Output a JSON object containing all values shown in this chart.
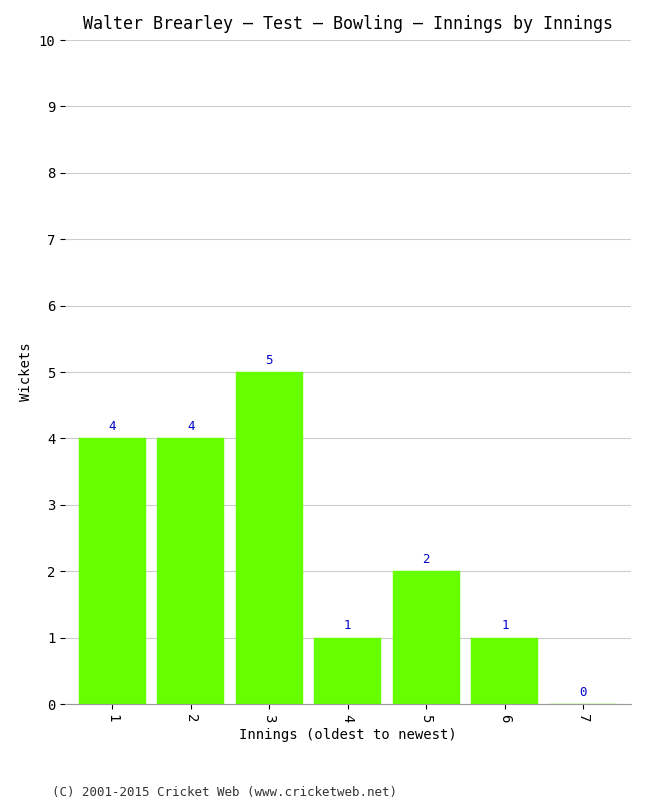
{
  "title": "Walter Brearley – Test – Bowling – Innings by Innings",
  "xlabel": "Innings (oldest to newest)",
  "ylabel": "Wickets",
  "categories": [
    1,
    2,
    3,
    4,
    5,
    6,
    7
  ],
  "values": [
    4,
    4,
    5,
    1,
    2,
    1,
    0
  ],
  "bar_color": "#66ff00",
  "bar_edge_color": "#66ff00",
  "ylim": [
    0,
    10
  ],
  "yticks": [
    0,
    1,
    2,
    3,
    4,
    5,
    6,
    7,
    8,
    9,
    10
  ],
  "label_color": "#0000cc",
  "background_color": "#ffffff",
  "grid_color": "#cccccc",
  "footer": "(C) 2001-2015 Cricket Web (www.cricketweb.net)",
  "title_fontsize": 12,
  "axis_label_fontsize": 10,
  "tick_fontsize": 10,
  "annotation_fontsize": 9,
  "footer_fontsize": 9
}
